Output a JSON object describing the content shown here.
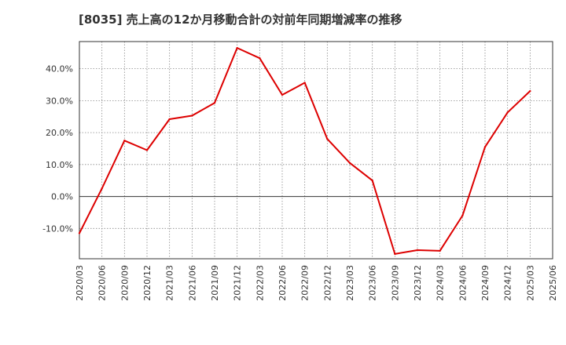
{
  "chart_data": {
    "type": "line",
    "title": "[8035]  売上高の12か月移動合計の対前年同期増減率の推移",
    "xlabel": "",
    "ylabel": "",
    "ylim": [
      -19.5,
      48.5
    ],
    "y_ticks": [
      -10,
      0,
      10,
      20,
      30,
      40
    ],
    "y_tick_labels": [
      "-10.0%",
      "0.0%",
      "10.0%",
      "20.0%",
      "30.0%",
      "40.0%"
    ],
    "x_tick_labels": [
      "2020/03",
      "2020/06",
      "2020/09",
      "2020/12",
      "2021/03",
      "2021/06",
      "2021/09",
      "2021/12",
      "2022/03",
      "2022/06",
      "2022/09",
      "2022/12",
      "2023/03",
      "2023/06",
      "2023/09",
      "2023/12",
      "2024/03",
      "2024/06",
      "2024/09",
      "2024/12",
      "2025/03",
      "2025/06"
    ],
    "grid": true,
    "series": [
      {
        "name": "売上高の12か月移動合計の対前年同期増減率",
        "color": "#dd0000",
        "x": [
          "2020/03",
          "2020/06",
          "2020/09",
          "2020/12",
          "2021/03",
          "2021/06",
          "2021/09",
          "2021/12",
          "2022/03",
          "2022/06",
          "2022/09",
          "2022/12",
          "2023/03",
          "2023/06",
          "2023/09",
          "2023/12",
          "2024/03",
          "2024/06",
          "2024/09",
          "2024/12",
          "2025/03"
        ],
        "values": [
          -11.5,
          2.5,
          17.5,
          14.5,
          24.2,
          25.3,
          29.3,
          46.5,
          43.3,
          31.8,
          35.6,
          18.0,
          10.5,
          5.0,
          -18.0,
          -16.8,
          -17.0,
          -6.0,
          15.5,
          26.3,
          33.0
        ]
      }
    ]
  }
}
